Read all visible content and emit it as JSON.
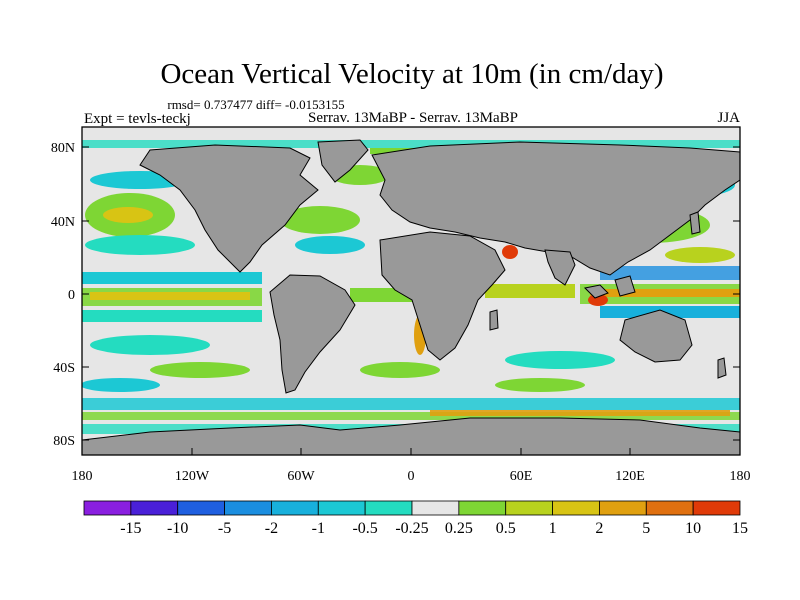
{
  "title": "Ocean Vertical Velocity at 10m (in cm/day)",
  "stats": "rmsd= 0.737477 diff= -0.0153155",
  "experiment": "Expt = tevls-teckj",
  "comparison": "Serrav.  13MaBP - Serrav.  13MaBP",
  "season": "JJA",
  "lat_ticks": [
    "80N",
    "40N",
    "0",
    "40S",
    "80S"
  ],
  "lon_ticks": [
    "180",
    "120W",
    "60W",
    "0",
    "60E",
    "120E",
    "180"
  ],
  "colorbar": {
    "labels": [
      "-15",
      "-10",
      "-5",
      "-2",
      "-1",
      "-0.5",
      "-0.25",
      "0.25",
      "0.5",
      "1",
      "2",
      "5",
      "10",
      "15"
    ],
    "colors": [
      "#8a1fe0",
      "#4a20d8",
      "#1f5fe0",
      "#1b8ee0",
      "#18b0dc",
      "#1cc8d4",
      "#24dcc0",
      "#e6e6e6",
      "#7ed634",
      "#b8d21e",
      "#d8c414",
      "#e0a010",
      "#e07010",
      "#e03a08"
    ]
  },
  "colors": {
    "land": "#999999",
    "ocean_neutral": "#e6e6e6"
  }
}
